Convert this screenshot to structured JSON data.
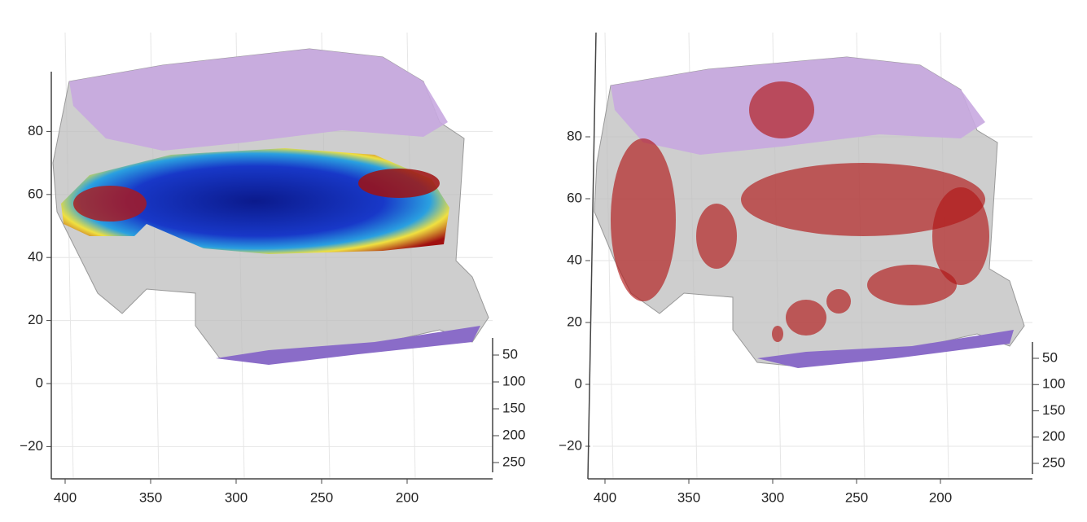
{
  "panels": [
    {
      "vertical_axis_ticks": [
        80,
        60,
        40,
        20,
        0,
        {
          "value": -20,
          "label": "−20"
        }
      ],
      "horizontal_axis_ticks": [
        400,
        350,
        300,
        250,
        200
      ],
      "depth_axis_ticks": [
        50,
        100,
        150,
        200,
        250
      ]
    },
    {
      "vertical_axis_ticks": [
        80,
        60,
        40,
        20,
        0,
        {
          "value": -20,
          "label": "−20"
        }
      ],
      "horizontal_axis_ticks": [
        400,
        350,
        300,
        250,
        200
      ],
      "depth_axis_ticks": [
        50,
        100,
        150,
        200,
        250
      ]
    }
  ]
}
